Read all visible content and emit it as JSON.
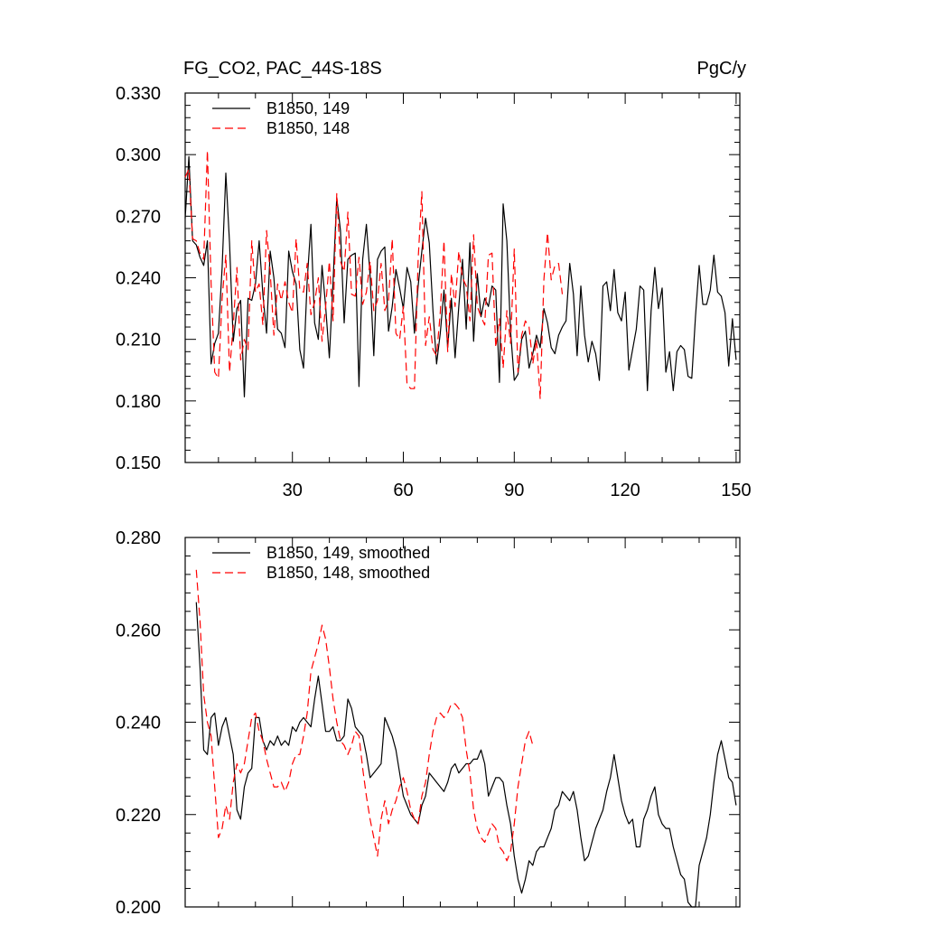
{
  "figure": {
    "left_title": "FG_CO2, PAC_44S-18S",
    "right_title": "PgC/y"
  },
  "chart_data": [
    {
      "type": "line",
      "xlim": [
        1,
        151
      ],
      "ylim": [
        0.15,
        0.33
      ],
      "x_ticks": [
        30,
        60,
        90,
        120,
        150
      ],
      "x_tick_labels": [
        "30",
        "60",
        "90",
        "120",
        "150"
      ],
      "y_ticks": [
        0.15,
        0.18,
        0.21,
        0.24,
        0.27,
        0.3,
        0.33
      ],
      "y_tick_labels": [
        "0.150",
        "0.180",
        "0.210",
        "0.240",
        "0.270",
        "0.300",
        "0.330"
      ],
      "legend_position": "top-left",
      "series": [
        {
          "name": "B1850, 149",
          "color": "#000000",
          "dash": "solid",
          "x_start": 1,
          "values": [
            0.269,
            0.299,
            0.258,
            0.256,
            0.25,
            0.246,
            0.258,
            0.198,
            0.208,
            0.213,
            0.245,
            0.291,
            0.257,
            0.209,
            0.225,
            0.229,
            0.182,
            0.23,
            0.229,
            0.237,
            0.258,
            0.232,
            0.213,
            0.253,
            0.24,
            0.215,
            0.213,
            0.206,
            0.253,
            0.243,
            0.237,
            0.205,
            0.196,
            0.239,
            0.266,
            0.218,
            0.21,
            0.246,
            0.226,
            0.201,
            0.238,
            0.279,
            0.263,
            0.218,
            0.249,
            0.251,
            0.252,
            0.187,
            0.249,
            0.266,
            0.241,
            0.202,
            0.249,
            0.253,
            0.255,
            0.214,
            0.226,
            0.244,
            0.235,
            0.225,
            0.245,
            0.238,
            0.213,
            0.236,
            0.253,
            0.269,
            0.257,
            0.224,
            0.198,
            0.213,
            0.234,
            0.206,
            0.23,
            0.201,
            0.226,
            0.249,
            0.215,
            0.257,
            0.209,
            0.242,
            0.221,
            0.23,
            0.226,
            0.236,
            0.234,
            0.189,
            0.276,
            0.258,
            0.214,
            0.19,
            0.193,
            0.21,
            0.214,
            0.196,
            0.203,
            0.212,
            0.206,
            0.225,
            0.218,
            0.206,
            0.203,
            0.212,
            0.216,
            0.219,
            0.247,
            0.232,
            0.202,
            0.236,
            0.212,
            0.199,
            0.209,
            0.203,
            0.19,
            0.236,
            0.238,
            0.224,
            0.244,
            0.223,
            0.219,
            0.233,
            0.195,
            0.205,
            0.215,
            0.236,
            0.234,
            0.185,
            0.224,
            0.245,
            0.225,
            0.235,
            0.194,
            0.204,
            0.185,
            0.204,
            0.207,
            0.205,
            0.192,
            0.191,
            0.221,
            0.246,
            0.227,
            0.227,
            0.234,
            0.251,
            0.233,
            0.231,
            0.223,
            0.197,
            0.22,
            0.2
          ]
        },
        {
          "name": "B1850, 148",
          "color": "#ff0000",
          "dash": "dashed",
          "x_start": 1,
          "values": [
            0.289,
            0.293,
            0.259,
            0.258,
            0.252,
            0.249,
            0.302,
            0.237,
            0.194,
            0.191,
            0.23,
            0.251,
            0.194,
            0.217,
            0.245,
            0.2,
            0.21,
            0.205,
            0.258,
            0.233,
            0.237,
            0.217,
            0.263,
            0.243,
            0.212,
            0.237,
            0.229,
            0.238,
            0.228,
            0.223,
            0.259,
            0.234,
            0.233,
            0.247,
            0.222,
            0.228,
            0.24,
            0.209,
            0.226,
            0.248,
            0.219,
            0.281,
            0.248,
            0.243,
            0.272,
            0.232,
            0.231,
            0.25,
            0.227,
            0.233,
            0.248,
            0.224,
            0.229,
            0.247,
            0.224,
            0.229,
            0.259,
            0.213,
            0.21,
            0.226,
            0.188,
            0.186,
            0.186,
            0.249,
            0.282,
            0.207,
            0.221,
            0.205,
            0.202,
            0.223,
            0.258,
            0.204,
            0.242,
            0.226,
            0.253,
            0.24,
            0.236,
            0.219,
            0.261,
            0.226,
            0.221,
            0.217,
            0.251,
            0.252,
            0.206,
            0.22,
            0.196,
            0.224,
            0.208,
            0.254,
            0.194,
            0.212,
            0.219,
            0.216,
            0.198,
            0.21,
            0.181,
            0.239,
            0.262,
            0.239,
            0.246,
            0.247,
            0.232
          ]
        }
      ]
    },
    {
      "type": "line",
      "xlim": [
        1,
        151
      ],
      "ylim": [
        0.2,
        0.28
      ],
      "x_ticks": [
        30,
        60,
        90,
        120,
        150
      ],
      "y_ticks": [
        0.2,
        0.22,
        0.24,
        0.26,
        0.28
      ],
      "y_tick_labels": [
        "0.200",
        "0.220",
        "0.240",
        "0.260",
        "0.280"
      ],
      "legend_position": "top-left",
      "series": [
        {
          "name": "B1850, 149, smoothed",
          "color": "#000000",
          "dash": "solid",
          "x_start": 4,
          "values": [
            0.266,
            0.252,
            0.234,
            0.233,
            0.241,
            0.242,
            0.235,
            0.239,
            0.241,
            0.237,
            0.233,
            0.221,
            0.219,
            0.226,
            0.229,
            0.23,
            0.241,
            0.241,
            0.236,
            0.234,
            0.236,
            0.235,
            0.237,
            0.235,
            0.236,
            0.235,
            0.239,
            0.238,
            0.24,
            0.241,
            0.24,
            0.239,
            0.245,
            0.25,
            0.244,
            0.238,
            0.238,
            0.239,
            0.236,
            0.236,
            0.237,
            0.245,
            0.243,
            0.239,
            0.238,
            0.237,
            0.233,
            0.228,
            0.229,
            0.23,
            0.231,
            0.241,
            0.239,
            0.237,
            0.234,
            0.229,
            0.224,
            0.222,
            0.22,
            0.219,
            0.218,
            0.222,
            0.224,
            0.229,
            0.228,
            0.227,
            0.226,
            0.225,
            0.227,
            0.23,
            0.231,
            0.229,
            0.23,
            0.231,
            0.231,
            0.232,
            0.232,
            0.234,
            0.231,
            0.224,
            0.226,
            0.228,
            0.228,
            0.227,
            0.222,
            0.218,
            0.211,
            0.206,
            0.203,
            0.206,
            0.21,
            0.209,
            0.212,
            0.213,
            0.213,
            0.215,
            0.217,
            0.221,
            0.222,
            0.225,
            0.224,
            0.223,
            0.225,
            0.221,
            0.215,
            0.21,
            0.211,
            0.214,
            0.217,
            0.219,
            0.221,
            0.225,
            0.228,
            0.233,
            0.228,
            0.223,
            0.22,
            0.218,
            0.219,
            0.213,
            0.213,
            0.219,
            0.221,
            0.224,
            0.226,
            0.22,
            0.218,
            0.217,
            0.217,
            0.213,
            0.21,
            0.207,
            0.206,
            0.201,
            0.2,
            0.2,
            0.209,
            0.212,
            0.215,
            0.22,
            0.227,
            0.233,
            0.236,
            0.232,
            0.228,
            0.227,
            0.222
          ]
        },
        {
          "name": "B1850, 148, smoothed",
          "color": "#ff0000",
          "dash": "dashed",
          "x_start": 4,
          "values": [
            0.273,
            0.262,
            0.246,
            0.24,
            0.237,
            0.226,
            0.215,
            0.217,
            0.222,
            0.219,
            0.227,
            0.231,
            0.229,
            0.231,
            0.236,
            0.241,
            0.242,
            0.238,
            0.236,
            0.232,
            0.229,
            0.226,
            0.226,
            0.227,
            0.225,
            0.227,
            0.231,
            0.233,
            0.233,
            0.237,
            0.242,
            0.251,
            0.254,
            0.257,
            0.261,
            0.258,
            0.252,
            0.245,
            0.24,
            0.236,
            0.235,
            0.233,
            0.235,
            0.238,
            0.237,
            0.23,
            0.224,
            0.219,
            0.215,
            0.211,
            0.219,
            0.223,
            0.218,
            0.221,
            0.223,
            0.226,
            0.228,
            0.225,
            0.221,
            0.219,
            0.218,
            0.224,
            0.227,
            0.233,
            0.238,
            0.241,
            0.242,
            0.241,
            0.242,
            0.244,
            0.244,
            0.243,
            0.241,
            0.234,
            0.229,
            0.221,
            0.217,
            0.215,
            0.214,
            0.216,
            0.218,
            0.217,
            0.213,
            0.212,
            0.21,
            0.212,
            0.218,
            0.226,
            0.231,
            0.236,
            0.238,
            0.235
          ]
        }
      ]
    }
  ]
}
